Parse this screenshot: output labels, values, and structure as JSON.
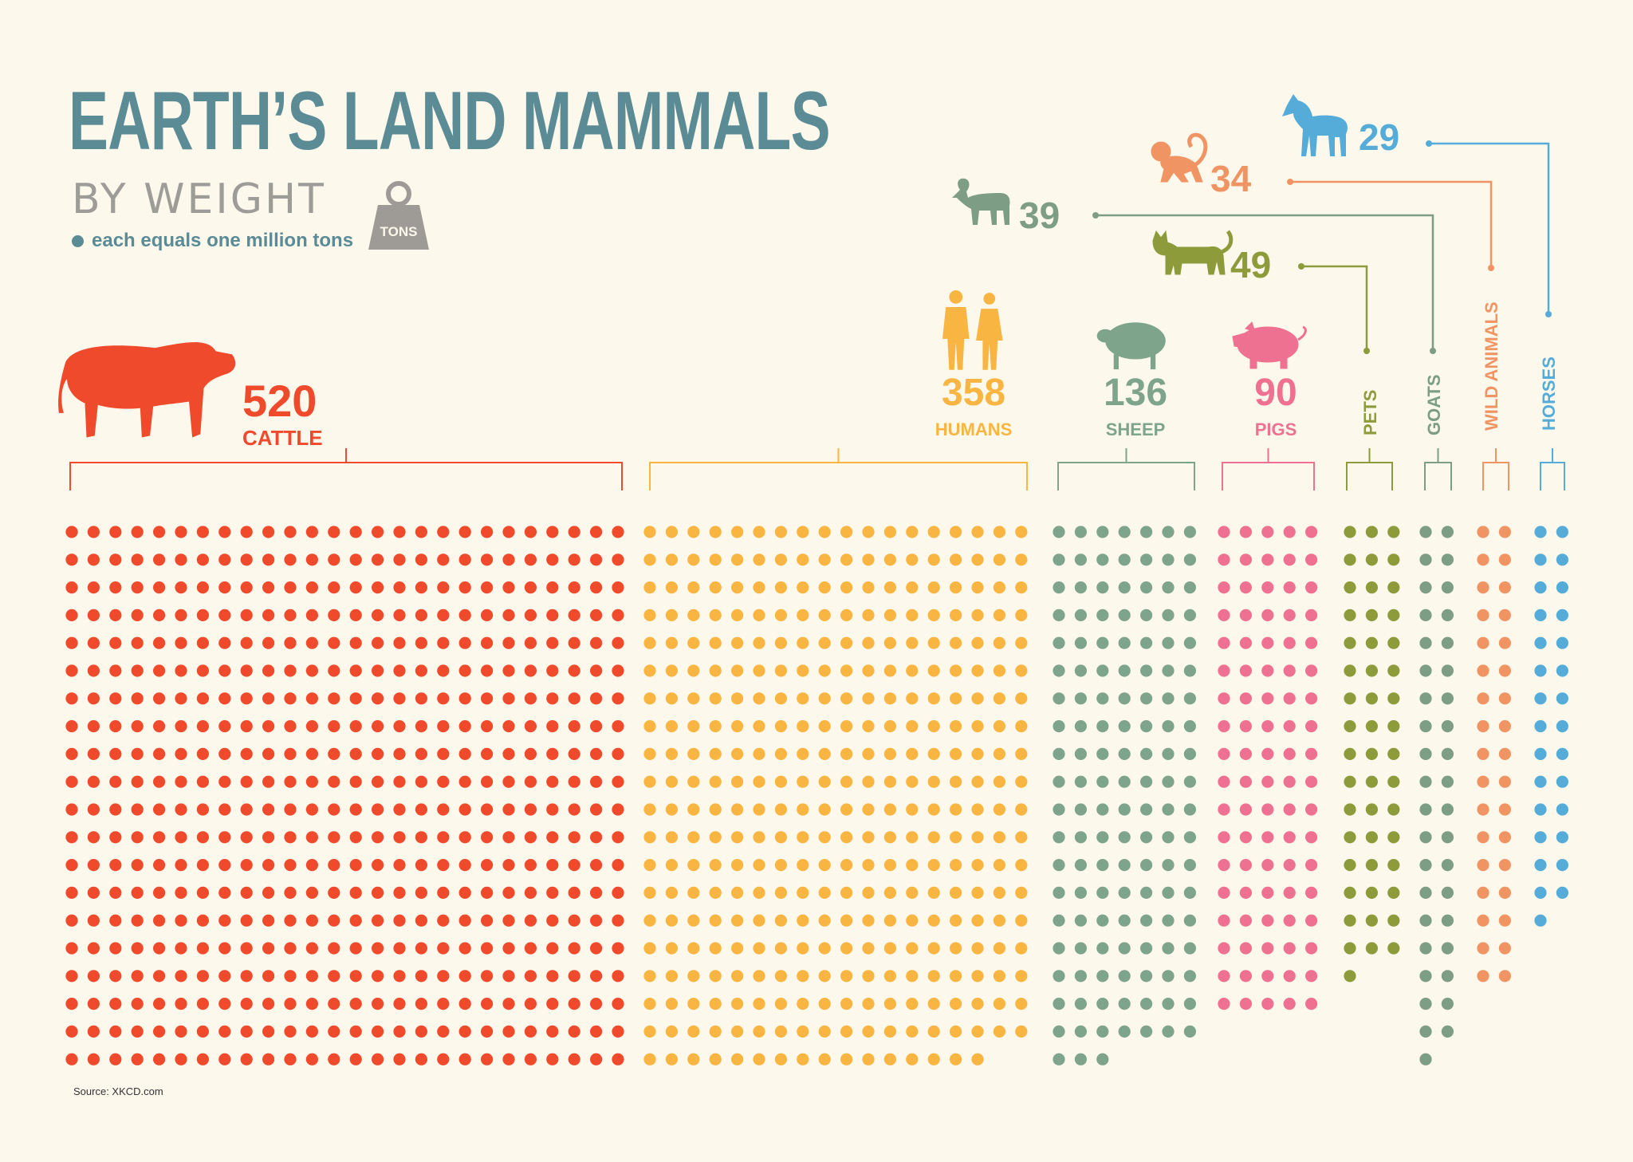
{
  "header": {
    "title": "EARTH’S LAND MAMMALS",
    "subtitle": "BY WEIGHT",
    "legend_text": "each equals one million tons",
    "weight_icon_label": "TONS"
  },
  "source": "Source: XKCD.com",
  "colors": {
    "title": "#5b8b95",
    "subtitle": "#9e9c97",
    "background": "#fcf8ec",
    "weight_icon": "#9e9a96"
  },
  "chart_data": {
    "type": "waffle",
    "title": "EARTH’S LAND MAMMALS",
    "subtitle": "BY WEIGHT",
    "unit": "million tons",
    "dot_value": 1,
    "series": [
      {
        "name": "CATTLE",
        "value": 520,
        "color": "#ef4a2b",
        "icon": "cow-icon"
      },
      {
        "name": "HUMANS",
        "value": 358,
        "color": "#f9b541",
        "icon": "humans-icon"
      },
      {
        "name": "SHEEP",
        "value": 136,
        "color": "#7fa48c",
        "icon": "sheep-icon"
      },
      {
        "name": "PIGS",
        "value": 90,
        "color": "#ef7191",
        "icon": "pig-icon"
      },
      {
        "name": "PETS",
        "value": 49,
        "color": "#8d9b3b",
        "icon": "cat-icon"
      },
      {
        "name": "GOATS",
        "value": 39,
        "color": "#7d9d84",
        "icon": "goat-icon"
      },
      {
        "name": "WILD ANIMALS",
        "value": 34,
        "color": "#f19463",
        "icon": "monkey-icon"
      },
      {
        "name": "HORSES",
        "value": 29,
        "color": "#56acd9",
        "icon": "horse-icon"
      }
    ]
  }
}
